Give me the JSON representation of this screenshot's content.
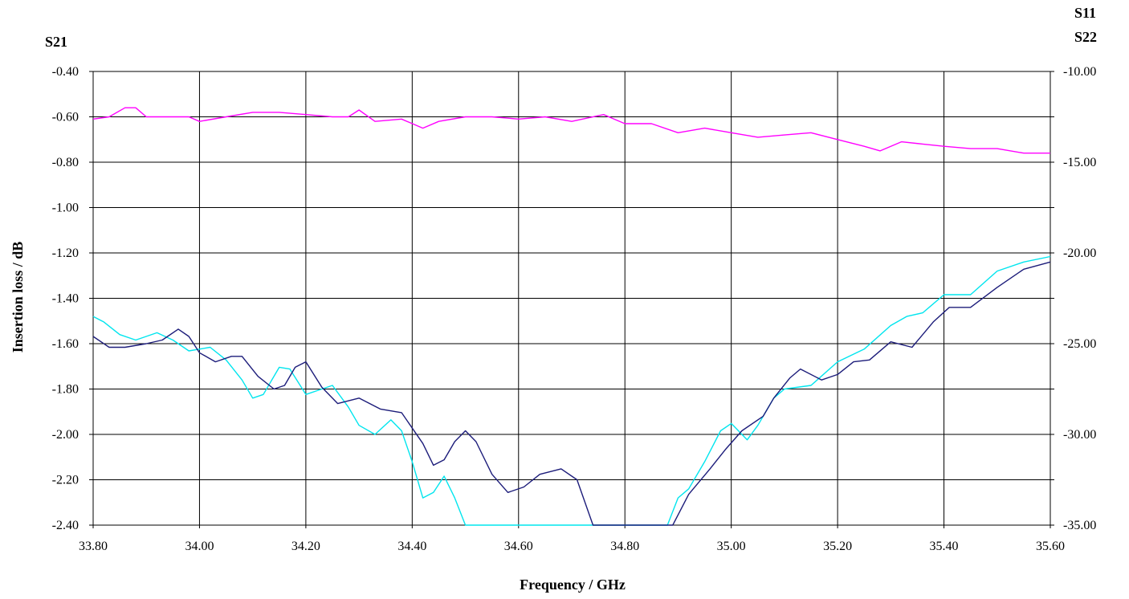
{
  "chart_data": {
    "type": "line",
    "xlabel": "Frequency / GHz",
    "ylabel": "Insertion loss / dB",
    "left_axis_label": "S21",
    "right_axis_labels": [
      "S11",
      "S22"
    ],
    "xlim": [
      33.8,
      35.6
    ],
    "x_ticks": [
      "33.80",
      "34.00",
      "34.20",
      "34.40",
      "34.60",
      "34.80",
      "35.00",
      "35.20",
      "35.40",
      "35.60"
    ],
    "ylim_left": [
      -2.4,
      -0.4
    ],
    "y_ticks_left": [
      "-0.40",
      "-0.60",
      "-0.80",
      "-1.00",
      "-1.20",
      "-1.40",
      "-1.60",
      "-1.80",
      "-2.00",
      "-2.20",
      "-2.40"
    ],
    "ylim_right": [
      -35,
      -10
    ],
    "y_ticks_right": [
      "-10.00",
      "-15.00",
      "-20.00",
      "-25.00",
      "-30.00",
      "-35.00"
    ],
    "grid": true,
    "series": [
      {
        "name": "S21",
        "axis": "left",
        "color": "#ff00ff",
        "points": [
          [
            33.8,
            -0.61
          ],
          [
            33.83,
            -0.6
          ],
          [
            33.86,
            -0.56
          ],
          [
            33.88,
            -0.56
          ],
          [
            33.9,
            -0.6
          ],
          [
            33.95,
            -0.6
          ],
          [
            33.98,
            -0.6
          ],
          [
            34.0,
            -0.62
          ],
          [
            34.05,
            -0.6
          ],
          [
            34.1,
            -0.58
          ],
          [
            34.15,
            -0.58
          ],
          [
            34.2,
            -0.59
          ],
          [
            34.25,
            -0.6
          ],
          [
            34.28,
            -0.6
          ],
          [
            34.3,
            -0.57
          ],
          [
            34.33,
            -0.62
          ],
          [
            34.38,
            -0.61
          ],
          [
            34.42,
            -0.65
          ],
          [
            34.45,
            -0.62
          ],
          [
            34.5,
            -0.6
          ],
          [
            34.55,
            -0.6
          ],
          [
            34.6,
            -0.61
          ],
          [
            34.65,
            -0.6
          ],
          [
            34.7,
            -0.62
          ],
          [
            34.76,
            -0.59
          ],
          [
            34.8,
            -0.63
          ],
          [
            34.85,
            -0.63
          ],
          [
            34.9,
            -0.67
          ],
          [
            34.95,
            -0.65
          ],
          [
            35.0,
            -0.67
          ],
          [
            35.05,
            -0.69
          ],
          [
            35.1,
            -0.68
          ],
          [
            35.15,
            -0.67
          ],
          [
            35.2,
            -0.7
          ],
          [
            35.25,
            -0.73
          ],
          [
            35.28,
            -0.75
          ],
          [
            35.32,
            -0.71
          ],
          [
            35.36,
            -0.72
          ],
          [
            35.4,
            -0.73
          ],
          [
            35.45,
            -0.74
          ],
          [
            35.5,
            -0.74
          ],
          [
            35.55,
            -0.76
          ],
          [
            35.6,
            -0.76
          ]
        ]
      },
      {
        "name": "S11",
        "axis": "right",
        "color": "#00e5ee",
        "points": [
          [
            33.8,
            -23.5
          ],
          [
            33.82,
            -23.8
          ],
          [
            33.85,
            -24.5
          ],
          [
            33.88,
            -24.8
          ],
          [
            33.92,
            -24.4
          ],
          [
            33.95,
            -24.8
          ],
          [
            33.98,
            -25.4
          ],
          [
            34.0,
            -25.3
          ],
          [
            34.02,
            -25.2
          ],
          [
            34.05,
            -25.9
          ],
          [
            34.08,
            -27.0
          ],
          [
            34.1,
            -28.0
          ],
          [
            34.12,
            -27.8
          ],
          [
            34.15,
            -26.3
          ],
          [
            34.17,
            -26.4
          ],
          [
            34.2,
            -27.8
          ],
          [
            34.23,
            -27.5
          ],
          [
            34.25,
            -27.3
          ],
          [
            34.28,
            -28.5
          ],
          [
            34.3,
            -29.5
          ],
          [
            34.33,
            -30.0
          ],
          [
            34.36,
            -29.2
          ],
          [
            34.38,
            -29.8
          ],
          [
            34.4,
            -31.5
          ],
          [
            34.42,
            -33.5
          ],
          [
            34.44,
            -33.2
          ],
          [
            34.46,
            -32.3
          ],
          [
            34.48,
            -33.5
          ],
          [
            34.5,
            -35.0
          ],
          [
            34.88,
            -35.0
          ],
          [
            34.9,
            -33.5
          ],
          [
            34.92,
            -33.0
          ],
          [
            34.95,
            -31.5
          ],
          [
            34.98,
            -29.8
          ],
          [
            35.0,
            -29.4
          ],
          [
            35.03,
            -30.3
          ],
          [
            35.05,
            -29.5
          ],
          [
            35.08,
            -28.0
          ],
          [
            35.1,
            -27.5
          ],
          [
            35.15,
            -27.3
          ],
          [
            35.2,
            -26.0
          ],
          [
            35.25,
            -25.3
          ],
          [
            35.3,
            -24.0
          ],
          [
            35.33,
            -23.5
          ],
          [
            35.36,
            -23.3
          ],
          [
            35.4,
            -22.3
          ],
          [
            35.45,
            -22.3
          ],
          [
            35.5,
            -21.0
          ],
          [
            35.55,
            -20.5
          ],
          [
            35.6,
            -20.2
          ]
        ]
      },
      {
        "name": "S22",
        "axis": "right",
        "color": "#1c1c7a",
        "points": [
          [
            33.8,
            -24.6
          ],
          [
            33.83,
            -25.2
          ],
          [
            33.86,
            -25.2
          ],
          [
            33.9,
            -25.0
          ],
          [
            33.93,
            -24.8
          ],
          [
            33.96,
            -24.2
          ],
          [
            33.98,
            -24.6
          ],
          [
            34.0,
            -25.5
          ],
          [
            34.03,
            -26.0
          ],
          [
            34.06,
            -25.7
          ],
          [
            34.08,
            -25.7
          ],
          [
            34.11,
            -26.8
          ],
          [
            34.14,
            -27.5
          ],
          [
            34.16,
            -27.3
          ],
          [
            34.18,
            -26.3
          ],
          [
            34.2,
            -26.0
          ],
          [
            34.23,
            -27.4
          ],
          [
            34.26,
            -28.3
          ],
          [
            34.3,
            -28.0
          ],
          [
            34.34,
            -28.6
          ],
          [
            34.38,
            -28.8
          ],
          [
            34.42,
            -30.5
          ],
          [
            34.44,
            -31.7
          ],
          [
            34.46,
            -31.4
          ],
          [
            34.48,
            -30.4
          ],
          [
            34.5,
            -29.8
          ],
          [
            34.52,
            -30.4
          ],
          [
            34.55,
            -32.2
          ],
          [
            34.58,
            -33.2
          ],
          [
            34.61,
            -32.9
          ],
          [
            34.64,
            -32.2
          ],
          [
            34.68,
            -31.9
          ],
          [
            34.71,
            -32.5
          ],
          [
            34.74,
            -35.0
          ],
          [
            34.89,
            -35.0
          ],
          [
            34.92,
            -33.3
          ],
          [
            34.96,
            -31.9
          ],
          [
            34.99,
            -30.8
          ],
          [
            35.02,
            -29.8
          ],
          [
            35.06,
            -29.0
          ],
          [
            35.08,
            -28.0
          ],
          [
            35.11,
            -26.9
          ],
          [
            35.13,
            -26.4
          ],
          [
            35.17,
            -27.0
          ],
          [
            35.2,
            -26.7
          ],
          [
            35.23,
            -26.0
          ],
          [
            35.26,
            -25.9
          ],
          [
            35.3,
            -24.9
          ],
          [
            35.34,
            -25.2
          ],
          [
            35.38,
            -23.8
          ],
          [
            35.41,
            -23.0
          ],
          [
            35.45,
            -23.0
          ],
          [
            35.5,
            -21.9
          ],
          [
            35.55,
            -20.9
          ],
          [
            35.6,
            -20.5
          ]
        ]
      }
    ]
  }
}
